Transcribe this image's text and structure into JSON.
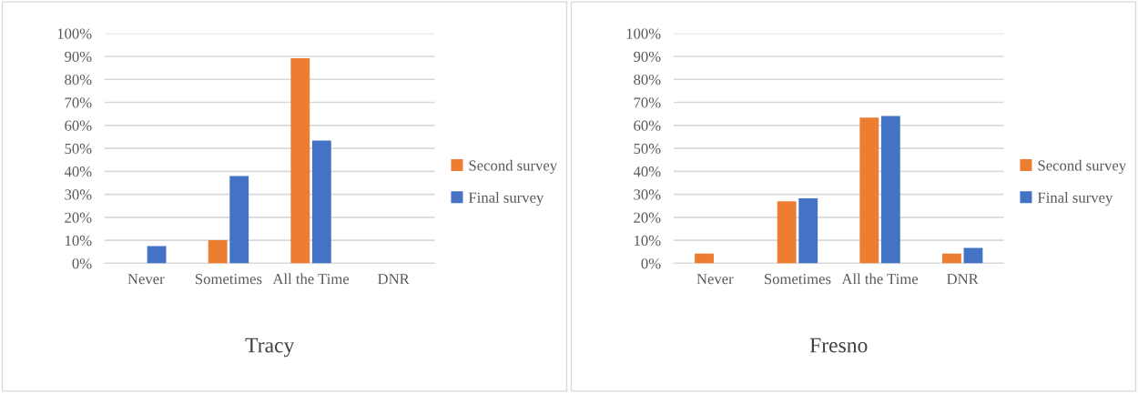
{
  "chart_data": [
    {
      "type": "bar",
      "title": "Tracy",
      "categories": [
        "Never",
        "Sometimes",
        "All the Time",
        "DNR"
      ],
      "series": [
        {
          "name": "Second survey",
          "color": "#ed7d31",
          "values": [
            0,
            10.1,
            89.2,
            0
          ]
        },
        {
          "name": "Final survey",
          "color": "#4472c4",
          "values": [
            7.5,
            38.0,
            53.4,
            0
          ]
        }
      ],
      "ylim": [
        0,
        100
      ],
      "yticks": [
        {
          "value": 0,
          "label": "0%"
        },
        {
          "value": 10,
          "label": "10%"
        },
        {
          "value": 20,
          "label": "20%"
        },
        {
          "value": 30,
          "label": "30%"
        },
        {
          "value": 40,
          "label": "40%"
        },
        {
          "value": 50,
          "label": "50%"
        },
        {
          "value": 60,
          "label": "60%"
        },
        {
          "value": 70,
          "label": "70%"
        },
        {
          "value": 80,
          "label": "80%"
        },
        {
          "value": 90,
          "label": "90%"
        },
        {
          "value": 100,
          "label": "100%"
        }
      ],
      "grid": "y",
      "legend": "right"
    },
    {
      "type": "bar",
      "title": "Fresno",
      "categories": [
        "Never",
        "Sometimes",
        "All the Time",
        "DNR"
      ],
      "series": [
        {
          "name": "Second survey",
          "color": "#ed7d31",
          "values": [
            4.2,
            27.0,
            63.4,
            4.2
          ]
        },
        {
          "name": "Final survey",
          "color": "#4472c4",
          "values": [
            0,
            28.3,
            64.1,
            6.7
          ]
        }
      ],
      "ylim": [
        0,
        100
      ],
      "yticks": [
        {
          "value": 0,
          "label": "0%"
        },
        {
          "value": 10,
          "label": "10%"
        },
        {
          "value": 20,
          "label": "20%"
        },
        {
          "value": 30,
          "label": "30%"
        },
        {
          "value": 40,
          "label": "40%"
        },
        {
          "value": 50,
          "label": "50%"
        },
        {
          "value": 60,
          "label": "60%"
        },
        {
          "value": 70,
          "label": "70%"
        },
        {
          "value": 80,
          "label": "80%"
        },
        {
          "value": 90,
          "label": "90%"
        },
        {
          "value": 100,
          "label": "100%"
        }
      ],
      "grid": "y",
      "legend": "right"
    }
  ]
}
